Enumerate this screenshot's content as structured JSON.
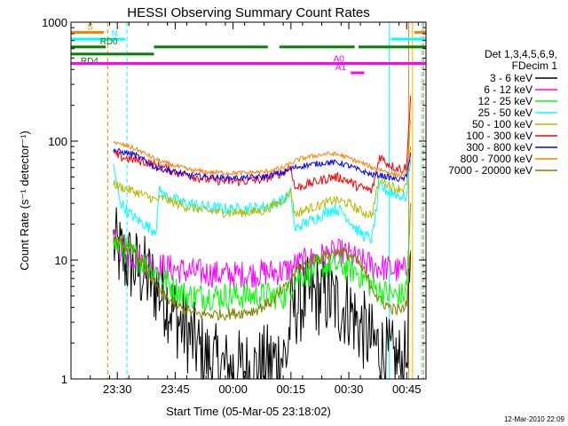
{
  "chart_data": {
    "type": "line",
    "title": "HESSI Observing Summary Count Rates",
    "xlabel": "Start Time (05-Mar-05 23:18:02)",
    "ylabel": "Count Rate (s⁻¹ detector⁻¹)",
    "footer": "12-Mar-2010 22:09",
    "x_unit": "minutes from 23:18:02",
    "xlim": [
      0,
      92
    ],
    "ylim": [
      1,
      1000
    ],
    "y_scale": "log",
    "x_ticks": [
      {
        "label": "23:30",
        "value": 12
      },
      {
        "label": "23:45",
        "value": 27
      },
      {
        "label": "00:00",
        "value": 42
      },
      {
        "label": "00:15",
        "value": 57
      },
      {
        "label": "00:30",
        "value": 72
      },
      {
        "label": "00:45",
        "value": 87
      }
    ],
    "y_ticks": [
      {
        "label": "1",
        "value": 1
      },
      {
        "label": "10",
        "value": 10
      },
      {
        "label": "100",
        "value": 100
      },
      {
        "label": "1000",
        "value": 1000
      }
    ],
    "legend": {
      "position": "right",
      "header": [
        "Det 1,3,4,5,6,9,",
        "FDecim 1"
      ]
    },
    "series": [
      {
        "name": "3 - 6 keV",
        "color": "#000000",
        "x": [
          11,
          12,
          14,
          16,
          18,
          20,
          22,
          24,
          26,
          28,
          30,
          32,
          34,
          36,
          38,
          40,
          42,
          44,
          46,
          48,
          50,
          52,
          54,
          56,
          57,
          58,
          60,
          62,
          64,
          66,
          68,
          70,
          72,
          74,
          76,
          78,
          80,
          82,
          84,
          86,
          87,
          88
        ],
        "y": [
          14,
          12,
          10,
          9,
          8,
          7,
          6,
          5,
          4,
          3,
          2.5,
          2,
          1.6,
          1.4,
          1.3,
          1.2,
          1.2,
          1.2,
          1.2,
          1.2,
          1.3,
          1.4,
          1.5,
          1.6,
          3.5,
          4,
          4.5,
          5,
          5,
          5,
          4.5,
          4,
          4,
          3,
          2.5,
          2,
          1.8,
          1.5,
          1.4,
          1.3,
          1.5,
          12
        ]
      },
      {
        "name": "6 - 12 keV",
        "color": "#ff00ff",
        "x": [
          11,
          14,
          18,
          22,
          26,
          30,
          34,
          38,
          42,
          46,
          50,
          54,
          56,
          57,
          58,
          62,
          66,
          70,
          72,
          74,
          78,
          82,
          86,
          87,
          88
        ],
        "y": [
          14,
          12,
          10,
          9,
          8.5,
          8,
          7.8,
          7.6,
          7.5,
          7.6,
          7.8,
          8,
          8.2,
          8.5,
          9,
          10,
          11,
          11.5,
          11,
          10,
          9,
          8.5,
          8,
          8.5,
          30
        ]
      },
      {
        "name": "12 - 25 keV",
        "color": "#00ff00",
        "x": [
          11,
          12,
          14,
          16,
          18,
          20,
          22,
          24,
          26,
          28,
          30,
          32,
          36,
          40,
          44,
          48,
          52,
          56,
          57,
          58,
          62,
          66,
          70,
          72,
          74,
          76,
          78,
          80,
          84,
          86,
          87,
          88
        ],
        "y": [
          14,
          13,
          12,
          11,
          10,
          9,
          8,
          7,
          6,
          5.5,
          5,
          5,
          5,
          5,
          5,
          5,
          5,
          5,
          6,
          7,
          8,
          9,
          9,
          8.5,
          8,
          7,
          6,
          5.5,
          5,
          5,
          6,
          30
        ]
      },
      {
        "name": "25 - 50 keV",
        "color": "#00ffff",
        "x": [
          11,
          12,
          13,
          15,
          17,
          19,
          21,
          22,
          23,
          24,
          27,
          30,
          35,
          40,
          45,
          50,
          55,
          57,
          58,
          60,
          63,
          66,
          68,
          70,
          72,
          74,
          76,
          78,
          80,
          82,
          84,
          86,
          87,
          88
        ],
        "y": [
          60,
          40,
          30,
          25,
          22,
          20,
          18,
          18,
          40,
          35,
          32,
          30,
          28,
          27,
          27,
          28,
          32,
          37,
          18,
          20,
          22,
          25,
          27,
          26,
          22,
          18,
          16,
          15,
          42,
          38,
          36,
          34,
          34,
          70
        ]
      },
      {
        "name": "50 - 100 keV",
        "color": "#b8b800",
        "x": [
          11,
          12,
          14,
          16,
          18,
          20,
          22,
          24,
          27,
          30,
          35,
          40,
          45,
          50,
          55,
          57,
          58,
          60,
          63,
          66,
          68,
          70,
          72,
          74,
          76,
          78,
          80,
          82,
          84,
          86,
          87,
          88
        ],
        "y": [
          45,
          42,
          40,
          38,
          36,
          34,
          32,
          33,
          30,
          28,
          26,
          25,
          25,
          26,
          32,
          38,
          24,
          26,
          28,
          30,
          32,
          31,
          30,
          27,
          25,
          24,
          50,
          44,
          40,
          40,
          42,
          150
        ]
      },
      {
        "name": "100 - 300 keV",
        "color": "#ff0000",
        "x": [
          11,
          12,
          14,
          16,
          18,
          20,
          22,
          24,
          27,
          30,
          35,
          40,
          45,
          50,
          55,
          57,
          58,
          60,
          63,
          66,
          68,
          70,
          72,
          74,
          76,
          78,
          80,
          82,
          84,
          86,
          87,
          88
        ],
        "y": [
          80,
          75,
          72,
          70,
          68,
          66,
          62,
          60,
          55,
          52,
          48,
          46,
          46,
          48,
          55,
          62,
          40,
          42,
          45,
          48,
          50,
          49,
          46,
          42,
          40,
          38,
          75,
          65,
          60,
          58,
          62,
          240
        ]
      },
      {
        "name": "300 - 800 keV",
        "color": "#0000ff",
        "x": [
          11,
          12,
          14,
          16,
          18,
          20,
          22,
          24,
          27,
          30,
          35,
          40,
          45,
          50,
          55,
          57,
          58,
          60,
          63,
          66,
          68,
          70,
          72,
          74,
          76,
          78,
          80,
          82,
          84,
          86,
          87,
          88
        ],
        "y": [
          85,
          82,
          80,
          78,
          72,
          66,
          60,
          58,
          55,
          52,
          50,
          49,
          49,
          50,
          54,
          58,
          60,
          62,
          64,
          66,
          66,
          65,
          62,
          58,
          55,
          52,
          52,
          50,
          48,
          48,
          50,
          80
        ]
      },
      {
        "name": "800 - 7000 keV",
        "color": "#ff8000",
        "x": [
          11,
          12,
          14,
          16,
          18,
          20,
          22,
          24,
          27,
          30,
          35,
          40,
          45,
          50,
          55,
          57,
          58,
          60,
          63,
          66,
          68,
          70,
          72,
          74,
          76,
          78,
          80,
          82,
          84,
          86,
          87,
          88
        ],
        "y": [
          100,
          95,
          92,
          88,
          82,
          76,
          70,
          66,
          62,
          58,
          55,
          54,
          54,
          55,
          60,
          65,
          68,
          72,
          75,
          78,
          78,
          76,
          72,
          68,
          64,
          60,
          58,
          55,
          52,
          52,
          55,
          90
        ]
      },
      {
        "name": "7000 - 20000 keV",
        "color": "#808000",
        "x": [
          11,
          12,
          14,
          16,
          18,
          20,
          22,
          24,
          26,
          28,
          30,
          32,
          36,
          40,
          44,
          48,
          52,
          56,
          57,
          58,
          62,
          66,
          70,
          72,
          74,
          76,
          78,
          80,
          84,
          86,
          87,
          88
        ],
        "y": [
          15,
          14,
          13,
          12,
          10,
          8,
          6,
          5,
          4.5,
          4,
          3.8,
          3.5,
          3.5,
          3.5,
          3.6,
          3.8,
          4.5,
          6,
          7,
          8,
          10,
          11,
          12,
          11,
          10,
          8,
          6,
          4.5,
          3.8,
          3.8,
          4.5,
          12
        ]
      }
    ],
    "flag_bars": [
      {
        "label": "S",
        "color": "#ff8000",
        "y": 820,
        "segments": [
          [
            0,
            8.5
          ],
          [
            89,
            92
          ]
        ]
      },
      {
        "label": "N",
        "color": "#00ffff",
        "y": 720,
        "segments": [
          [
            0,
            14
          ],
          [
            83,
            92
          ]
        ]
      },
      {
        "label": "RD0",
        "color": "#008000",
        "y": 620,
        "segments": [
          [
            0,
            9
          ],
          [
            21.5,
            51
          ],
          [
            54,
            73.5
          ],
          [
            74.5,
            92
          ]
        ]
      },
      {
        "label": "RD4",
        "color": "#008000",
        "y": 540,
        "segments": [
          [
            0,
            21.5
          ]
        ]
      },
      {
        "label": "A0",
        "color": "#ff00ff",
        "y": 450,
        "segments": [
          [
            0,
            92
          ]
        ]
      },
      {
        "label": "A1",
        "color": "#ff00ff",
        "y": 375,
        "segments": [
          [
            72.5,
            76
          ]
        ]
      }
    ],
    "vertical_markers": [
      {
        "x": 9.5,
        "color": "#ff8000",
        "style": "dashed"
      },
      {
        "x": 14.5,
        "color": "#00ffff",
        "style": "dashed"
      },
      {
        "x": 82.5,
        "color": "#00ffff",
        "style": "solid"
      },
      {
        "x": 87.5,
        "color": "#ff8000",
        "style": "solid"
      },
      {
        "x": 88.5,
        "color": "#ffb000",
        "style": "solid"
      },
      {
        "x": 91,
        "color": "#00ffff",
        "style": "dashed"
      },
      {
        "x": 91.4,
        "color": "#ff8000",
        "style": "dashed"
      }
    ]
  }
}
